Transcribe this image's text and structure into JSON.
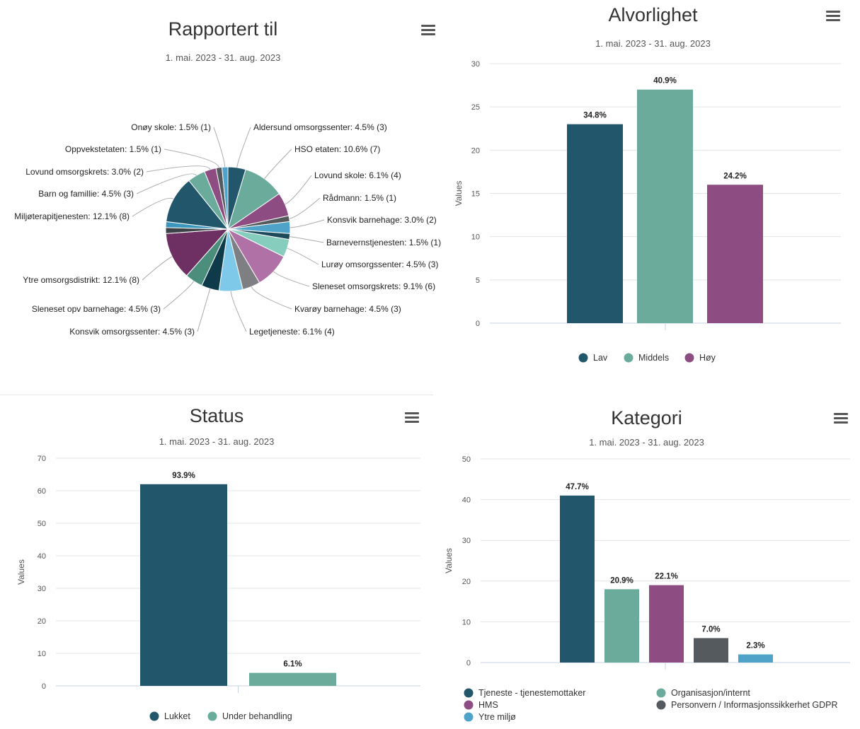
{
  "charts": {
    "reported": {
      "title": "Rapportert til",
      "subtitle": "1. mai. 2023 - 31. aug. 2023"
    },
    "severity": {
      "title": "Alvorlighet",
      "subtitle": "1. mai. 2023 - 31. aug. 2023"
    },
    "status": {
      "title": "Status",
      "subtitle": "1. mai. 2023 - 31. aug. 2023"
    },
    "category": {
      "title": "Kategori",
      "subtitle": "1. mai. 2023 - 31. aug. 2023"
    }
  },
  "chart_data": [
    {
      "type": "pie",
      "title": "Rapportert til",
      "subtitle": "1. mai. 2023 - 31. aug. 2023",
      "slices": [
        {
          "name": "Aldersund omsorgssenter",
          "value": 3,
          "label": "Aldersund omsorgssenter: 4.5% (3)",
          "color": "#22566b"
        },
        {
          "name": "HSO etaten",
          "value": 7,
          "label": "HSO etaten: 10.6% (7)",
          "color": "#6aab9c"
        },
        {
          "name": "Lovund skole",
          "value": 4,
          "label": "Lovund skole: 6.1% (4)",
          "color": "#8e4d82"
        },
        {
          "name": "Rådmann",
          "value": 1,
          "label": "Rådmann: 1.5% (1)",
          "color": "#555a5e"
        },
        {
          "name": "Konsvik barnehage",
          "value": 2,
          "label": "Konsvik barnehage: 3.0% (2)",
          "color": "#4fa3c8"
        },
        {
          "name": "Barnevernstjenesten",
          "value": 1,
          "label": "Barnevernstjenesten: 1.5% (1)",
          "color": "#1d4a5b"
        },
        {
          "name": "Lurøy omsorgssenter",
          "value": 3,
          "label": "Lurøy omsorgssenter: 4.5% (3)",
          "color": "#86cdbd"
        },
        {
          "name": "Sleneset omsorgskrets",
          "value": 6,
          "label": "Sleneset omsorgskrets: 9.1% (6)",
          "color": "#b071a6"
        },
        {
          "name": "Kvarøy barnehage",
          "value": 3,
          "label": "Kvarøy barnehage: 4.5% (3)",
          "color": "#7d7f82"
        },
        {
          "name": "Legetjeneste",
          "value": 4,
          "label": "Legetjeneste: 6.1% (4)",
          "color": "#7ec8ea"
        },
        {
          "name": "Konsvik omsorgssenter",
          "value": 3,
          "label": "Konsvik omsorgssenter: 4.5% (3)",
          "color": "#0f3a4a"
        },
        {
          "name": "Sleneset opv barnehage",
          "value": 3,
          "label": "Sleneset opv barnehage: 4.5% (3)",
          "color": "#4c8e7c"
        },
        {
          "name": "Ytre omsorgsdistrikt",
          "value": 8,
          "label": "Ytre omsorgsdistrikt: 12.1% (8)",
          "color": "#6e2f62"
        },
        {
          "name": "Miljøterapitjenesten",
          "value": 1,
          "label": "",
          "color": "#3d4246"
        },
        {
          "name": "Miljøterapitjenesten",
          "value": 1,
          "label": "",
          "color": "#3b97bd"
        },
        {
          "name": "Miljøterapitjenesten",
          "value": 8,
          "label": "Miljøterapitjenesten: 12.1% (8)",
          "color": "#22566b"
        },
        {
          "name": "Barn og familie",
          "value": 3,
          "label": "Barn og famillie: 4.5% (3)",
          "color": "#6aab9c"
        },
        {
          "name": "Lovund omsorgskrets",
          "value": 2,
          "label": "Lovund omsorgskrets: 3.0% (2)",
          "color": "#8e4d82"
        },
        {
          "name": "Oppvekstetaten",
          "value": 1,
          "label": "Oppvekstetaten: 1.5% (1)",
          "color": "#555a5e"
        },
        {
          "name": "Onøy skole",
          "value": 1,
          "label": "Onøy skole: 1.5% (1)",
          "color": "#4fa3c8"
        }
      ]
    },
    {
      "type": "bar",
      "title": "Alvorlighet",
      "subtitle": "1. mai. 2023 - 31. aug. 2023",
      "ylabel": "Values",
      "ylim": [
        0,
        30
      ],
      "yticks": [
        0,
        5,
        10,
        15,
        20,
        25,
        30
      ],
      "series": [
        {
          "name": "Lav",
          "value": 23,
          "label": "34.8%",
          "color": "#22566b"
        },
        {
          "name": "Middels",
          "value": 27,
          "label": "40.9%",
          "color": "#6aab9c"
        },
        {
          "name": "Høy",
          "value": 16,
          "label": "24.2%",
          "color": "#8e4d82"
        }
      ],
      "grid": true,
      "legend": "bottom"
    },
    {
      "type": "bar",
      "title": "Status",
      "subtitle": "1. mai. 2023 - 31. aug. 2023",
      "ylabel": "Values",
      "ylim": [
        0,
        70
      ],
      "yticks": [
        0,
        10,
        20,
        30,
        40,
        50,
        60,
        70
      ],
      "series": [
        {
          "name": "Lukket",
          "value": 62,
          "label": "93.9%",
          "color": "#22566b"
        },
        {
          "name": "Under behandling",
          "value": 4,
          "label": "6.1%",
          "color": "#6aab9c"
        }
      ],
      "grid": true,
      "legend": "bottom"
    },
    {
      "type": "bar",
      "title": "Kategori",
      "subtitle": "1. mai. 2023 - 31. aug. 2023",
      "ylabel": "Values",
      "ylim": [
        0,
        50
      ],
      "yticks": [
        0,
        10,
        20,
        30,
        40,
        50
      ],
      "series": [
        {
          "name": "Tjeneste - tjenestemottaker",
          "value": 41,
          "label": "47.7%",
          "color": "#22566b"
        },
        {
          "name": "Organisasjon/internt",
          "value": 18,
          "label": "20.9%",
          "color": "#6aab9c"
        },
        {
          "name": "HMS",
          "value": 19,
          "label": "22.1%",
          "color": "#8e4d82"
        },
        {
          "name": "Personvern / Informasjonssikkerhet GDPR",
          "value": 6,
          "label": "7.0%",
          "color": "#555a5e"
        },
        {
          "name": "Ytre miljø",
          "value": 2,
          "label": "2.3%",
          "color": "#4fa3c8"
        }
      ],
      "grid": true,
      "legend": "bottom"
    }
  ]
}
